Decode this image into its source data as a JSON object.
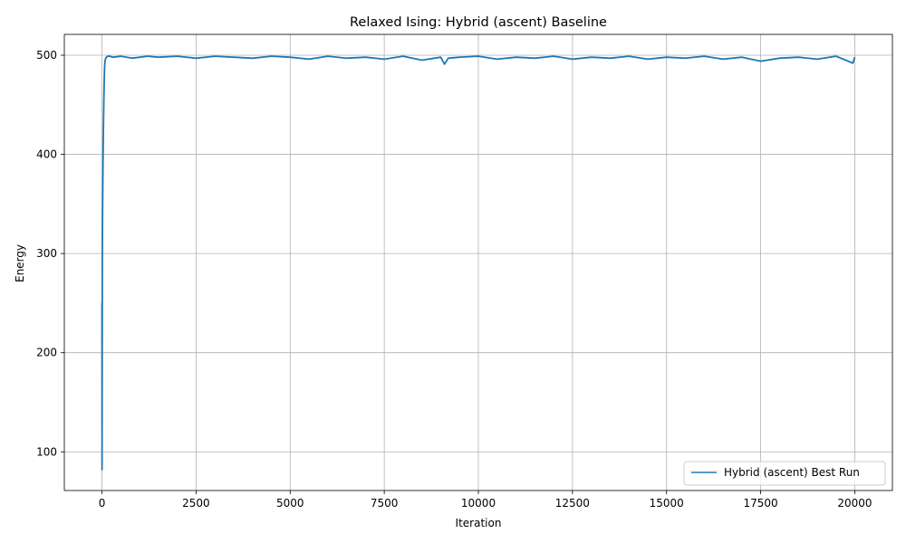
{
  "chart_data": {
    "type": "line",
    "title": "Relaxed Ising: Hybrid (ascent) Baseline",
    "xlabel": "Iteration",
    "ylabel": "Energy",
    "xlim": [
      -1000,
      21000
    ],
    "ylim": [
      61,
      521
    ],
    "grid": true,
    "legend_position": "lower right",
    "x_ticks": [
      0,
      2500,
      5000,
      7500,
      10000,
      12500,
      15000,
      17500,
      20000
    ],
    "y_ticks": [
      100,
      200,
      300,
      400,
      500
    ],
    "series": [
      {
        "name": "Hybrid (ascent) Best Run",
        "color": "#1f77b4",
        "x": [
          0,
          2,
          4,
          6,
          8,
          10,
          15,
          20,
          25,
          30,
          40,
          50,
          60,
          70,
          80,
          100,
          120,
          150,
          200,
          300,
          500,
          800,
          1200,
          1500,
          2000,
          2500,
          3000,
          3500,
          4000,
          4500,
          5000,
          5500,
          6000,
          6500,
          7000,
          7500,
          8000,
          8500,
          9000,
          9100,
          9200,
          9500,
          10000,
          10500,
          11000,
          11500,
          12000,
          12500,
          13000,
          13500,
          14000,
          14500,
          15000,
          15500,
          16000,
          16500,
          17000,
          17500,
          18000,
          18500,
          19000,
          19500,
          19950,
          20000
        ],
        "y": [
          250,
          82,
          150,
          200,
          250,
          300,
          340,
          360,
          380,
          400,
          430,
          455,
          475,
          488,
          494,
          497,
          498,
          499,
          499,
          498,
          499,
          497,
          499,
          498,
          499,
          497,
          499,
          498,
          497,
          499,
          498,
          496,
          499,
          497,
          498,
          496,
          499,
          495,
          498,
          491,
          497,
          498,
          499,
          496,
          498,
          497,
          499,
          496,
          498,
          497,
          499,
          496,
          498,
          497,
          499,
          496,
          498,
          494,
          497,
          498,
          496,
          499,
          492,
          498
        ]
      }
    ]
  }
}
